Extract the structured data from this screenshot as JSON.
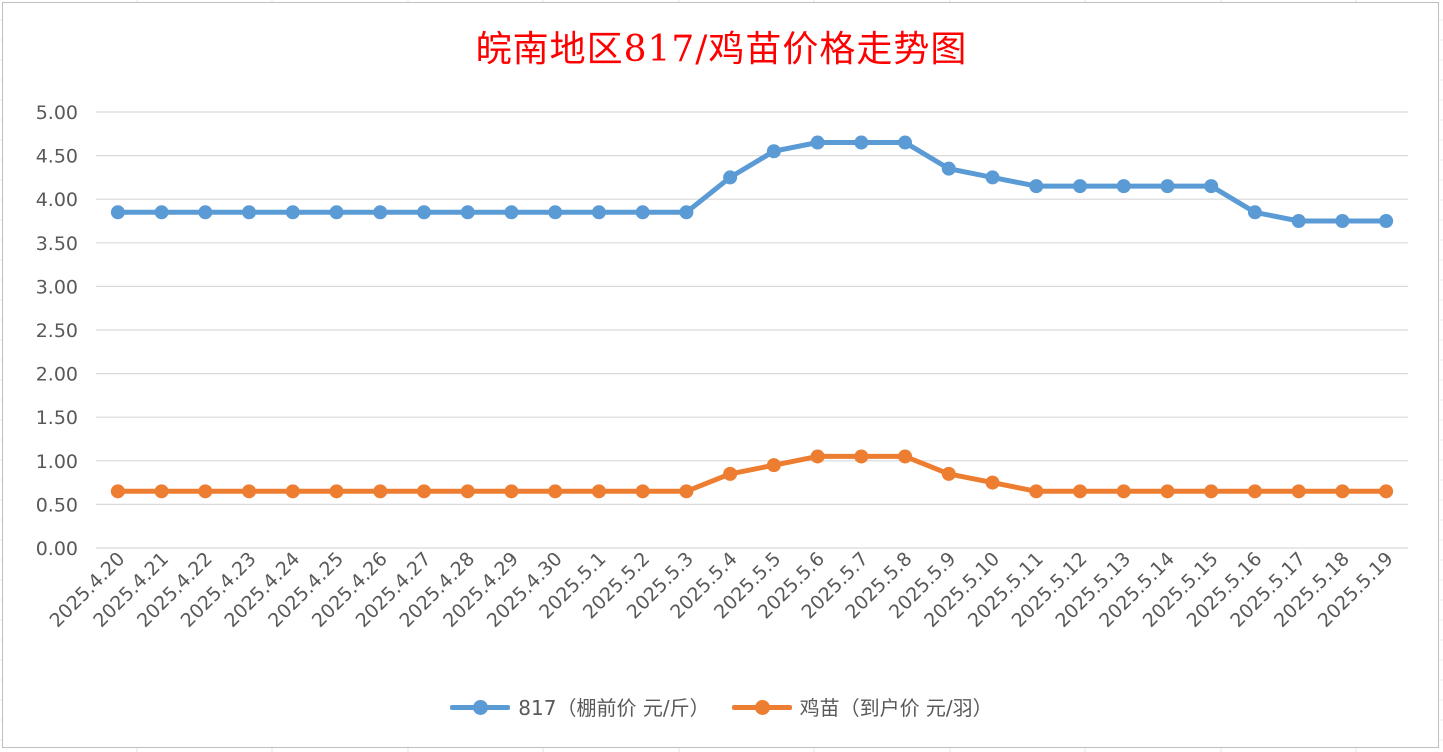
{
  "colors": {
    "title": "#ff0000",
    "series_817": "#5b9bd5",
    "series_chick": "#ed7d31",
    "grid": "#d9d9d9",
    "axis_text": "#595959"
  },
  "chart_data": {
    "type": "line",
    "title": "皖南地区817/鸡苗价格走势图",
    "xlabel": "",
    "ylabel": "",
    "ylim": [
      0,
      5
    ],
    "yticks": [
      "0.00",
      "0.50",
      "1.00",
      "1.50",
      "2.00",
      "2.50",
      "3.00",
      "3.50",
      "4.00",
      "4.50",
      "5.00"
    ],
    "grid": true,
    "legend": "bottom",
    "categories": [
      "2025.4.20",
      "2025.4.21",
      "2025.4.22",
      "2025.4.23",
      "2025.4.24",
      "2025.4.25",
      "2025.4.26",
      "2025.4.27",
      "2025.4.28",
      "2025.4.29",
      "2025.4.30",
      "2025.5.1",
      "2025.5.2",
      "2025.5.3",
      "2025.5.4",
      "2025.5.5",
      "2025.5.6",
      "2025.5.7",
      "2025.5.8",
      "2025.5.9",
      "2025.5.10",
      "2025.5.11",
      "2025.5.12",
      "2025.5.13",
      "2025.5.14",
      "2025.5.15",
      "2025.5.16",
      "2025.5.17",
      "2025.5.18",
      "2025.5.19"
    ],
    "series": [
      {
        "name": "817（棚前价 元/斤）",
        "color": "#5b9bd5",
        "values": [
          3.85,
          3.85,
          3.85,
          3.85,
          3.85,
          3.85,
          3.85,
          3.85,
          3.85,
          3.85,
          3.85,
          3.85,
          3.85,
          3.85,
          4.25,
          4.55,
          4.65,
          4.65,
          4.65,
          4.35,
          4.25,
          4.15,
          4.15,
          4.15,
          4.15,
          4.15,
          3.85,
          3.75,
          3.75,
          3.75
        ]
      },
      {
        "name": "鸡苗（到户价 元/羽）",
        "color": "#ed7d31",
        "values": [
          0.65,
          0.65,
          0.65,
          0.65,
          0.65,
          0.65,
          0.65,
          0.65,
          0.65,
          0.65,
          0.65,
          0.65,
          0.65,
          0.65,
          0.85,
          0.95,
          1.05,
          1.05,
          1.05,
          0.85,
          0.75,
          0.65,
          0.65,
          0.65,
          0.65,
          0.65,
          0.65,
          0.65,
          0.65,
          0.65
        ]
      }
    ]
  }
}
